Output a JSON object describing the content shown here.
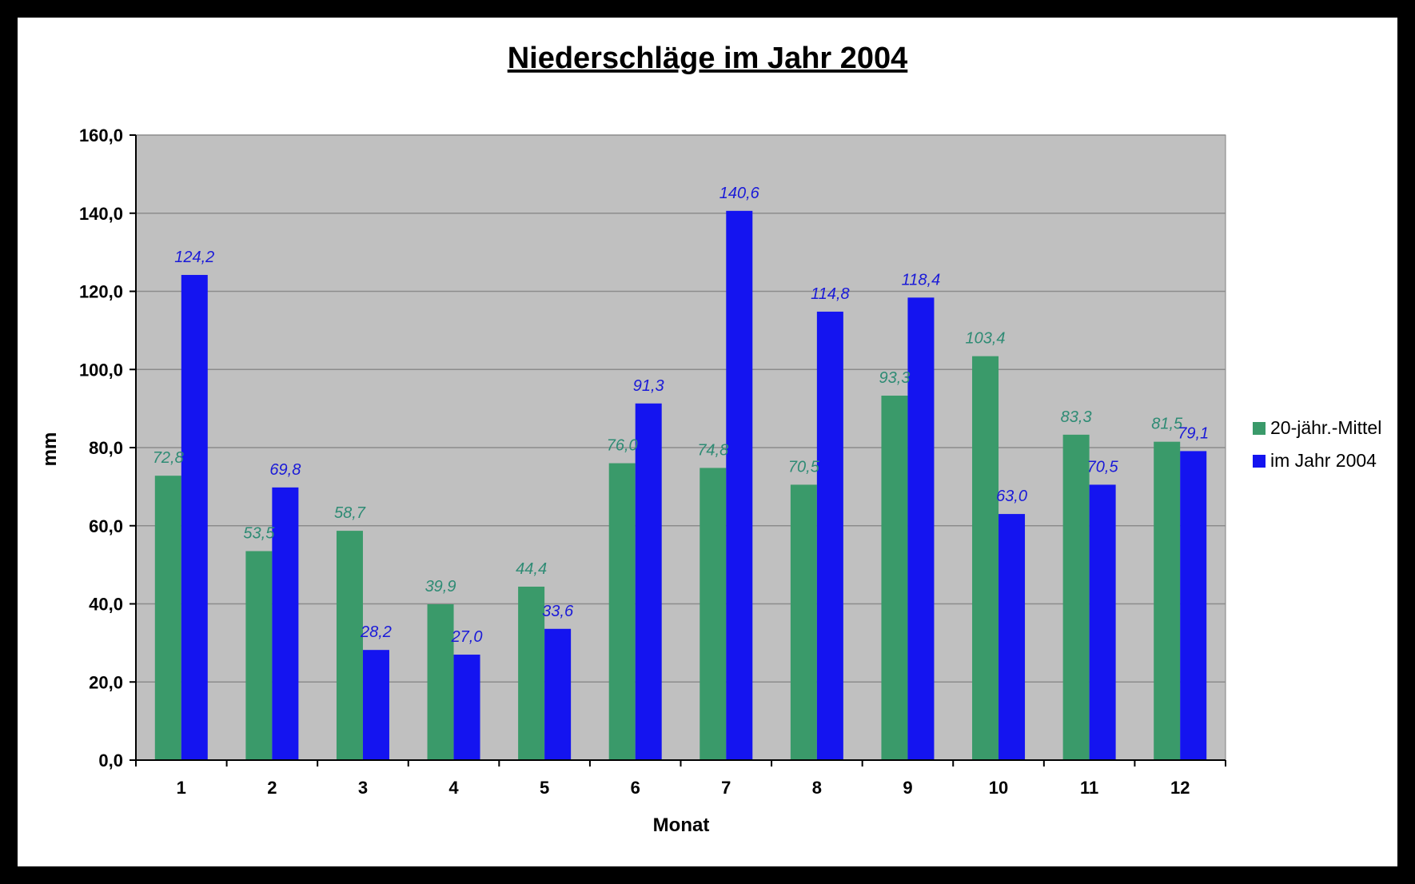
{
  "chart_data": {
    "type": "bar",
    "title": "Niederschläge im Jahr 2004",
    "xlabel": "Monat",
    "ylabel": "mm",
    "categories": [
      "1",
      "2",
      "3",
      "4",
      "5",
      "6",
      "7",
      "8",
      "9",
      "10",
      "11",
      "12"
    ],
    "ylim": [
      0,
      160
    ],
    "ytick_labels": [
      "0,0",
      "20,0",
      "40,0",
      "60,0",
      "80,0",
      "100,0",
      "120,0",
      "140,0",
      "160,0"
    ],
    "grid": true,
    "legend_position": "right",
    "series": [
      {
        "name": "20-jähr.-Mittel",
        "color": "#3a9a6a",
        "label_color": "#2e8b74",
        "values": [
          72.8,
          53.5,
          58.7,
          39.9,
          44.4,
          76.0,
          74.8,
          70.5,
          93.3,
          103.4,
          83.3,
          81.5
        ],
        "labels": [
          "72,8",
          "53,5",
          "58,7",
          "39,9",
          "44,4",
          "76,0",
          "74,8",
          "70,5",
          "93,3",
          "103,4",
          "83,3",
          "81,5"
        ]
      },
      {
        "name": "im Jahr 2004",
        "color": "#1414f0",
        "label_color": "#1a1ad8",
        "values": [
          124.2,
          69.8,
          28.2,
          27.0,
          33.6,
          91.3,
          140.6,
          114.8,
          118.4,
          63.0,
          70.5,
          79.1
        ],
        "labels": [
          "124,2",
          "69,8",
          "28,2",
          "27,0",
          "33,6",
          "91,3",
          "140,6",
          "114,8",
          "118,4",
          "63,0",
          "70,5",
          "79,1"
        ]
      }
    ],
    "plot_background": "#c0c0c0",
    "gridline_color": "#8c8c8c"
  }
}
